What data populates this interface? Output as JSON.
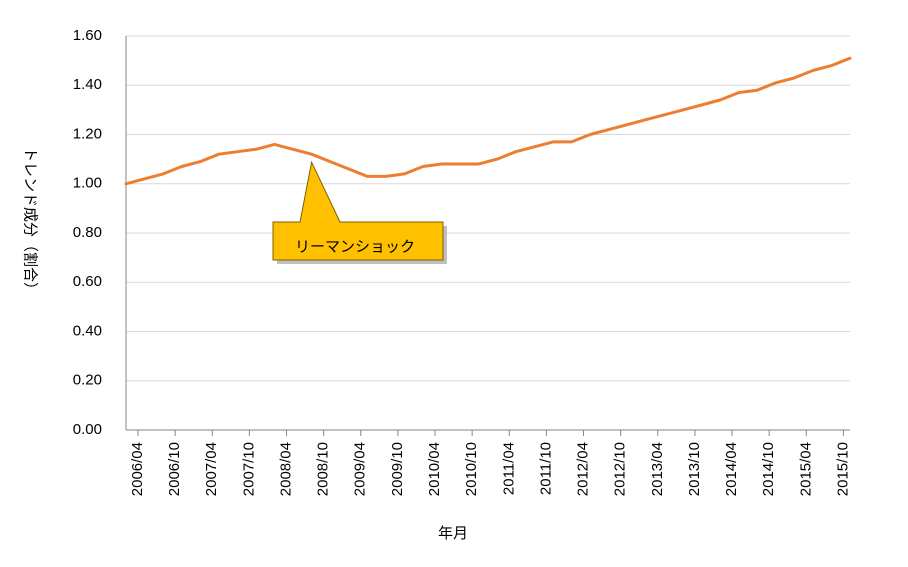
{
  "chart_data": {
    "type": "line",
    "xlabel": "年月",
    "ylabel": "トレンド成分（割合）",
    "ylim": [
      0,
      1.6
    ],
    "y_ticks": [
      "0.00",
      "0.20",
      "0.40",
      "0.60",
      "0.80",
      "1.00",
      "1.20",
      "1.40",
      "1.60"
    ],
    "x_ticks": [
      "2006/04",
      "2006/10",
      "2007/04",
      "2007/10",
      "2008/04",
      "2008/10",
      "2009/04",
      "2009/10",
      "2010/04",
      "2010/10",
      "2011/04",
      "2011/10",
      "2012/04",
      "2012/10",
      "2013/04",
      "2013/10",
      "2014/04",
      "2014/10",
      "2015/04",
      "2015/10"
    ],
    "grid": true,
    "legend": "none",
    "line_color": "#ED7D31",
    "series": [
      {
        "x": [
          "2006/04",
          "2006/07",
          "2006/10",
          "2007/01",
          "2007/04",
          "2007/07",
          "2007/10",
          "2008/01",
          "2008/04",
          "2008/07",
          "2008/10",
          "2009/01",
          "2009/04",
          "2009/07",
          "2009/10",
          "2010/01",
          "2010/04",
          "2010/07",
          "2010/10",
          "2011/01",
          "2011/04",
          "2011/07",
          "2011/10",
          "2012/01",
          "2012/04",
          "2012/07",
          "2012/10",
          "2013/01",
          "2013/04",
          "2013/07",
          "2013/10",
          "2014/01",
          "2014/04",
          "2014/07",
          "2014/10",
          "2015/01",
          "2015/04",
          "2015/07",
          "2015/10",
          "2016/01"
        ],
        "values": [
          1.0,
          1.02,
          1.04,
          1.07,
          1.09,
          1.12,
          1.13,
          1.14,
          1.16,
          1.14,
          1.12,
          1.09,
          1.06,
          1.03,
          1.03,
          1.04,
          1.07,
          1.08,
          1.08,
          1.08,
          1.1,
          1.13,
          1.15,
          1.17,
          1.17,
          1.2,
          1.22,
          1.24,
          1.26,
          1.28,
          1.3,
          1.32,
          1.34,
          1.37,
          1.38,
          1.41,
          1.43,
          1.46,
          1.48,
          1.51
        ]
      }
    ],
    "annotation": {
      "text": "リーマンショック",
      "points_to": "2008/10",
      "fill": "#FFC000"
    }
  }
}
